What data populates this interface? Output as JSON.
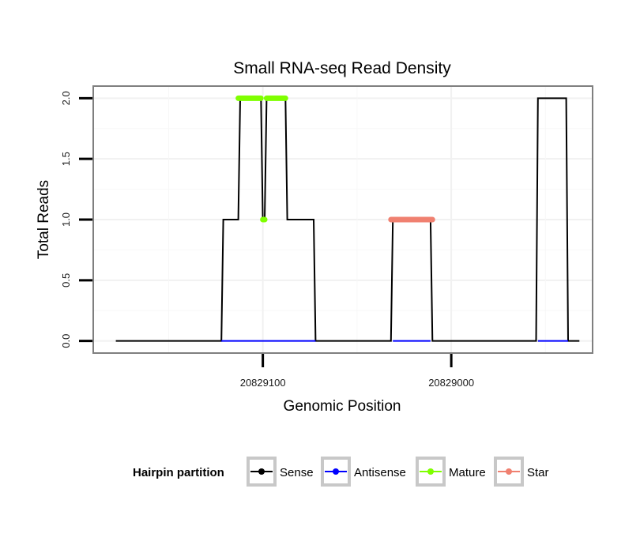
{
  "chart_data": {
    "type": "line",
    "title": "Small RNA-seq Read Density",
    "xlabel": "Genomic Position",
    "ylabel": "Total Reads",
    "x_reversed": true,
    "xlim": [
      20829190,
      20828925
    ],
    "ylim": [
      -0.1,
      2.1
    ],
    "xticks": [
      20829100,
      20829000
    ],
    "xtick_labels": [
      "20829100",
      "20829000"
    ],
    "yticks": [
      0,
      0.5,
      1,
      1.5,
      2
    ],
    "ytick_labels": [
      "0.0",
      "0.5",
      "1.0",
      "1.5",
      "2.0"
    ],
    "grid": true,
    "legend_position": "bottom",
    "legend_title": "Hairpin partition",
    "series": [
      {
        "name": "Sense",
        "color": "#000000",
        "x": [
          20829178,
          20829122,
          20829121,
          20829113,
          20829112,
          20829101,
          20829100,
          20829099,
          20829098,
          20829088,
          20829087,
          20829073,
          20829072,
          20829032,
          20829031,
          20829011,
          20829010,
          20828955,
          20828954,
          20828939,
          20828938,
          20828932
        ],
        "values": [
          0,
          0,
          1,
          1,
          2,
          2,
          1,
          1,
          2,
          2,
          1,
          1,
          0,
          0,
          1,
          1,
          0,
          0,
          2,
          2,
          0,
          0
        ]
      },
      {
        "name": "Antisense",
        "color": "#0000FF",
        "x": [
          20829122,
          20829072,
          20829031,
          20829011,
          20828954,
          20828938
        ],
        "values": [
          0,
          0,
          0,
          0,
          0,
          0
        ],
        "segments": [
          [
            0,
            1
          ],
          [
            2,
            3
          ],
          [
            4,
            5
          ]
        ]
      },
      {
        "name": "Mature",
        "color": "#7FFF00",
        "x": [
          20829113,
          20829101,
          20829098,
          20829088,
          20829100,
          20829099
        ],
        "values": [
          2,
          2,
          2,
          2,
          1,
          1
        ],
        "segments": [
          [
            0,
            1
          ],
          [
            2,
            3
          ],
          [
            4,
            5
          ]
        ]
      },
      {
        "name": "Star",
        "color": "#F08070",
        "x": [
          20829032,
          20829010
        ],
        "values": [
          1,
          1
        ],
        "segments": [
          [
            0,
            1
          ]
        ]
      }
    ]
  }
}
